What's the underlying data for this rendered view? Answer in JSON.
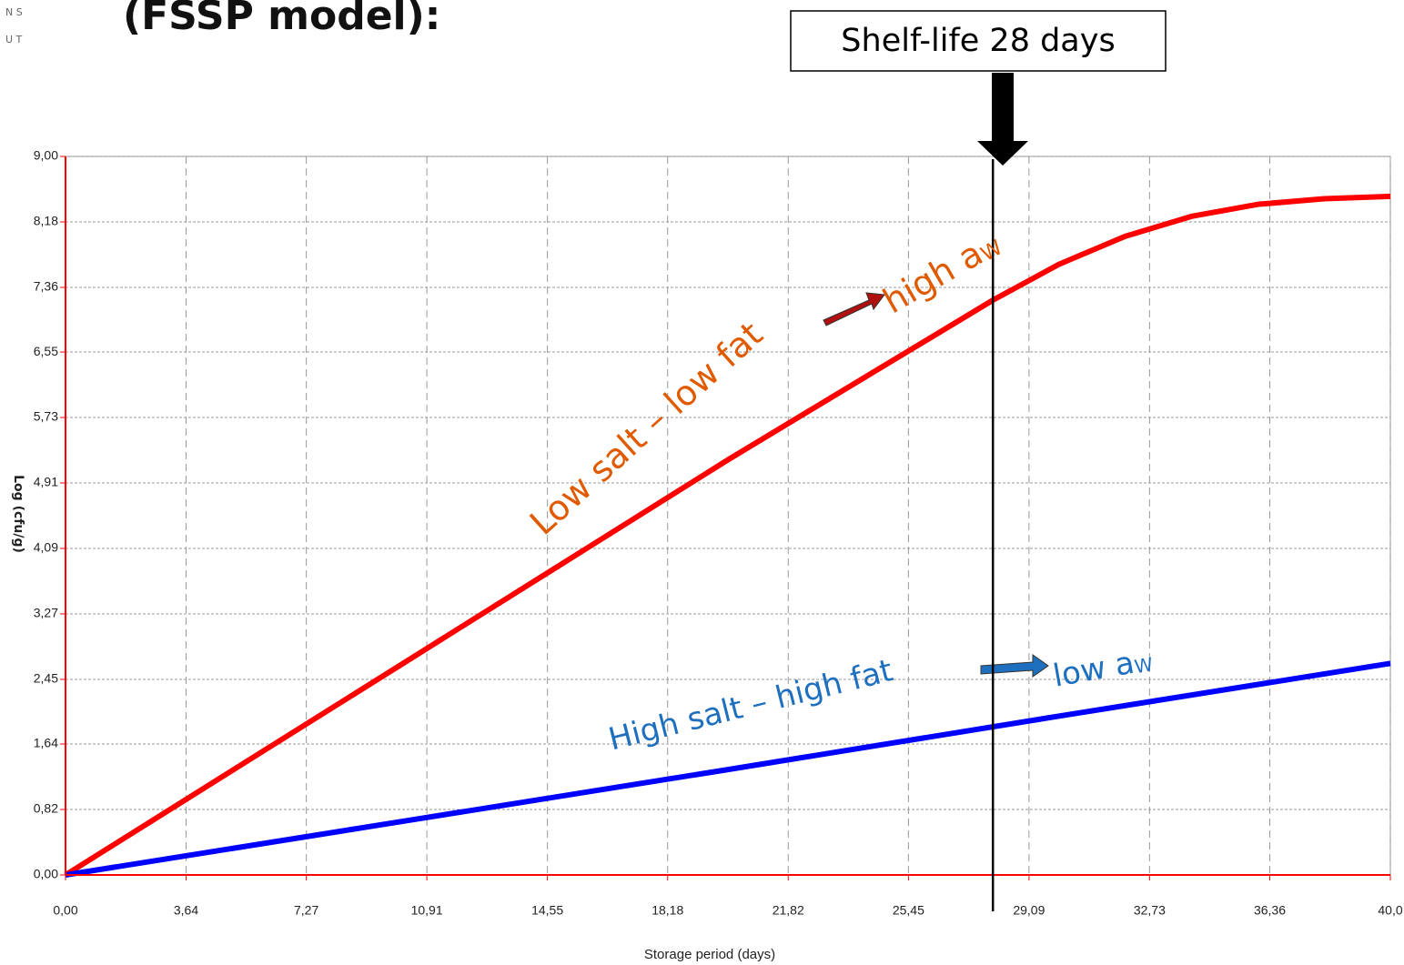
{
  "chart_data": {
    "type": "line",
    "title": "(FSSP model):",
    "logo": [
      "N S",
      "U T"
    ],
    "xlabel": "Storage period (days)",
    "ylabel": "Log (cfu/g)",
    "xlim": [
      0,
      40
    ],
    "ylim": [
      0,
      9
    ],
    "xticks": [
      {
        "value": 0,
        "label": "0,00"
      },
      {
        "value": 3.64,
        "label": "3,64"
      },
      {
        "value": 7.27,
        "label": "7,27"
      },
      {
        "value": 10.91,
        "label": "10,91"
      },
      {
        "value": 14.55,
        "label": "14,55"
      },
      {
        "value": 18.18,
        "label": "18,18"
      },
      {
        "value": 21.82,
        "label": "21,82"
      },
      {
        "value": 25.45,
        "label": "25,45"
      },
      {
        "value": 29.09,
        "label": "29,09"
      },
      {
        "value": 32.73,
        "label": "32,73"
      },
      {
        "value": 36.36,
        "label": "36,36"
      },
      {
        "value": 40,
        "label": "40,0"
      }
    ],
    "yticks": [
      {
        "value": 0,
        "label": "0,00"
      },
      {
        "value": 0.82,
        "label": "0,82"
      },
      {
        "value": 1.64,
        "label": "1,64"
      },
      {
        "value": 2.45,
        "label": "2,45"
      },
      {
        "value": 3.27,
        "label": "3,27"
      },
      {
        "value": 4.09,
        "label": "4,09"
      },
      {
        "value": 4.91,
        "label": "4,91"
      },
      {
        "value": 5.73,
        "label": "5,73"
      },
      {
        "value": 6.55,
        "label": "6,55"
      },
      {
        "value": 7.36,
        "label": "7,36"
      },
      {
        "value": 8.18,
        "label": "8,18"
      },
      {
        "value": 9,
        "label": "9,00"
      }
    ],
    "grid": true,
    "series": [
      {
        "name": "Low salt – low fat",
        "color": "#ff0000",
        "x": [
          0,
          5,
          10,
          15,
          20,
          25,
          28,
          30,
          32,
          34,
          36,
          38,
          40
        ],
        "values": [
          0,
          1.3,
          2.6,
          3.9,
          5.2,
          6.45,
          7.2,
          7.65,
          8.0,
          8.25,
          8.4,
          8.47,
          8.5
        ]
      },
      {
        "name": "High salt – high fat",
        "color": "#0000ff",
        "x": [
          0,
          10,
          20,
          30,
          40
        ],
        "values": [
          0,
          0.66,
          1.32,
          1.99,
          2.65
        ]
      }
    ],
    "annotations": [
      {
        "text": "Low salt – low fat",
        "color": "#e05a00"
      },
      {
        "text": "high a",
        "sub": "W",
        "color": "#e05a00"
      },
      {
        "text": "High salt – high fat",
        "color": "#1f6fbf"
      },
      {
        "text": "low a",
        "sub": "W",
        "color": "#1f6fbf"
      }
    ],
    "marker": {
      "label": "Shelf-life 28 days",
      "x": 28
    }
  }
}
